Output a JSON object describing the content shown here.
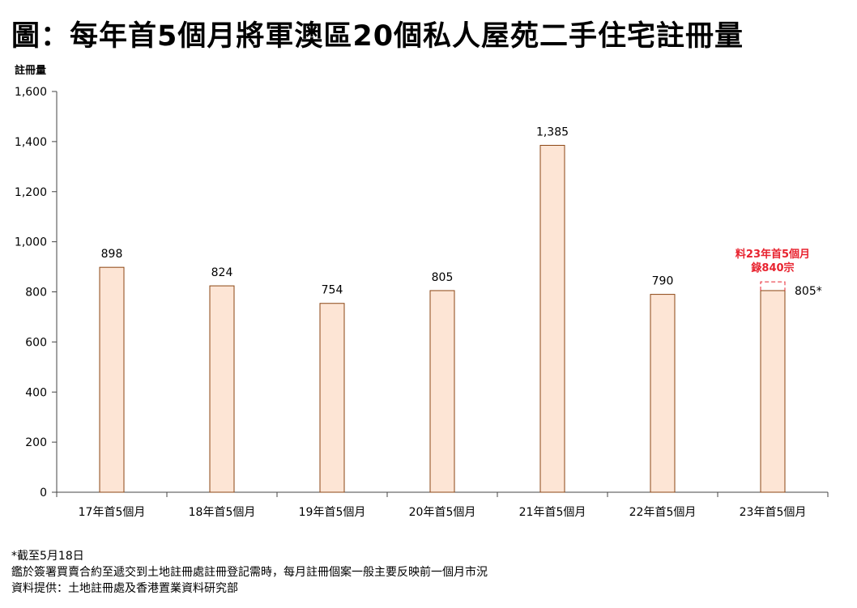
{
  "title": "圖：每年首5個月將軍澳區20個私人屋苑二手住宅註冊量",
  "chart_data": {
    "type": "bar",
    "title": "圖：每年首5個月將軍澳區20個私人屋苑二手住宅註冊量",
    "ylabel": "註冊量",
    "xlabel": "",
    "ylim": [
      0,
      1600
    ],
    "yticks": [
      0,
      200,
      400,
      600,
      800,
      1000,
      1200,
      1400,
      1600
    ],
    "ytick_labels": [
      "0",
      "200",
      "400",
      "600",
      "800",
      "1,000",
      "1,200",
      "1,400",
      "1,600"
    ],
    "categories": [
      "17年首5個月",
      "18年首5個月",
      "19年首5個月",
      "20年首5個月",
      "21年首5個月",
      "22年首5個月",
      "23年首5個月"
    ],
    "values": [
      898,
      824,
      754,
      805,
      1385,
      790,
      805
    ],
    "value_labels": [
      "898",
      "824",
      "754",
      "805",
      "1,385",
      "790",
      "805*"
    ],
    "projection": {
      "category": "23年首5個月",
      "value": 840,
      "label_line1": "料23年首5個月",
      "label_line2": "錄840宗"
    },
    "grid": false,
    "colors": {
      "bar_fill": "#fde5d5",
      "bar_stroke": "#8b4513",
      "axis": "#444444",
      "projection": "#e8232f"
    }
  },
  "notes": [
    "*截至5月18日",
    "鑑於簽署買賣合約至遞交到土地註冊處註冊登記需時，每月註冊個案一般主要反映前一個月市況",
    "資料提供：土地註冊處及香港置業資料研究部"
  ]
}
